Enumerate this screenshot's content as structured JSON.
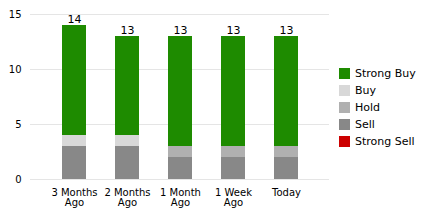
{
  "chart_data": {
    "type": "bar",
    "stacked": true,
    "categories": [
      "3 Months\nAgo",
      "2 Months\nAgo",
      "1 Month\nAgo",
      "1 Week\nAgo",
      "Today"
    ],
    "series": [
      {
        "name": "Strong Sell",
        "color": "#cc0000",
        "values": [
          0,
          0,
          0,
          0,
          0
        ]
      },
      {
        "name": "Sell",
        "color": "#888888",
        "values": [
          3,
          3,
          2,
          2,
          2
        ]
      },
      {
        "name": "Hold",
        "color": "#b0b0b0",
        "values": [
          0,
          0,
          1,
          1,
          1
        ]
      },
      {
        "name": "Buy",
        "color": "#d8d8d8",
        "values": [
          1,
          1,
          0,
          0,
          0
        ]
      },
      {
        "name": "Strong Buy",
        "color": "#1e8b00",
        "values": [
          10,
          9,
          10,
          10,
          10
        ]
      }
    ],
    "totals": [
      14,
      13,
      13,
      13,
      13
    ],
    "ylim": [
      0,
      15
    ],
    "yticks": [
      0,
      5,
      10,
      15
    ],
    "grid": true,
    "legend": "right"
  }
}
